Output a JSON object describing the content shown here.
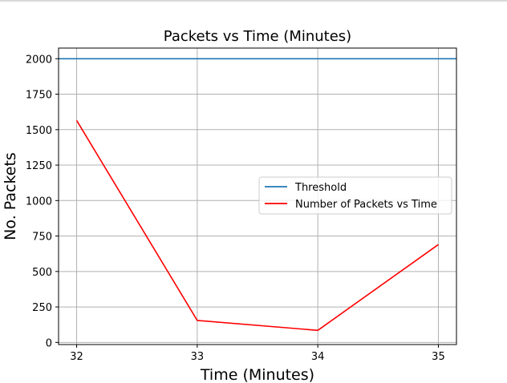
{
  "chart_data": {
    "type": "line",
    "title": "Packets vs Time (Minutes)",
    "xlabel": "Time (Minutes)",
    "ylabel": "No. Packets",
    "x": [
      32,
      33,
      34,
      35
    ],
    "xlim": [
      31.85,
      35.15
    ],
    "ylim": [
      -15,
      2075
    ],
    "xticks": [
      32,
      33,
      34,
      35
    ],
    "yticks": [
      0,
      250,
      500,
      750,
      1000,
      1250,
      1500,
      1750,
      2000
    ],
    "grid": true,
    "legend_position": "center-right",
    "series": [
      {
        "name": "Threshold",
        "kind": "hline",
        "value": 2000,
        "color": "#1f77b4"
      },
      {
        "name": "Number of Packets vs Time",
        "kind": "line",
        "values": [
          1565,
          155,
          85,
          690
        ],
        "color": "#ff0000"
      }
    ]
  }
}
